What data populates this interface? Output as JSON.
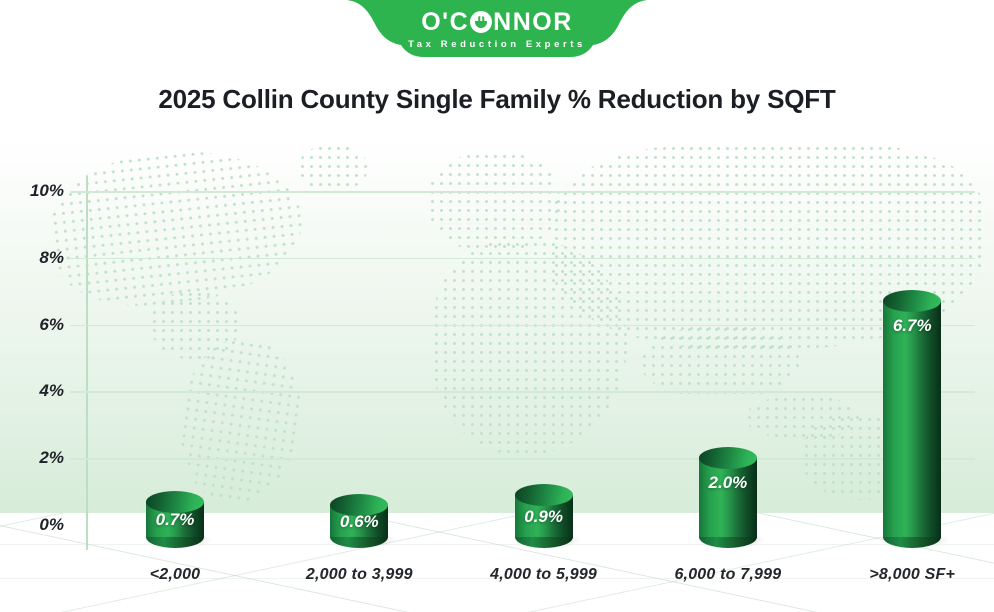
{
  "logo": {
    "brand_prefix": "O'C",
    "brand_suffix": "NNOR",
    "brand_full": "O'CONNOR",
    "tagline": "Tax Reduction Experts",
    "color": "#2eb44e"
  },
  "title": "2025 Collin County Single Family % Reduction by SQFT",
  "chart_data": {
    "type": "bar",
    "style": "3d-cylinder",
    "title": "2025 Collin County Single Family % Reduction by SQFT",
    "categories": [
      "<2,000",
      "2,000 to 3,999",
      "4,000 to 5,999",
      "6,000 to 7,999",
      ">8,000 SF+"
    ],
    "values": [
      0.7,
      0.6,
      0.9,
      2.0,
      6.7
    ],
    "value_labels": [
      "0.7%",
      "0.6%",
      "0.9%",
      "2.0%",
      "6.7%"
    ],
    "unit": "%",
    "xlabel": "",
    "ylabel": "",
    "ylim": [
      0,
      10
    ],
    "yticks": [
      {
        "value": 0,
        "label": "0%"
      },
      {
        "value": 2,
        "label": "2%"
      },
      {
        "value": 4,
        "label": "4%"
      },
      {
        "value": 6,
        "label": "6%"
      },
      {
        "value": 8,
        "label": "8%"
      },
      {
        "value": 10,
        "label": "10%"
      }
    ],
    "grid": true,
    "legend": false,
    "bar_color": "#2fb257",
    "background": "dotted world map over white-to-green gradient"
  }
}
